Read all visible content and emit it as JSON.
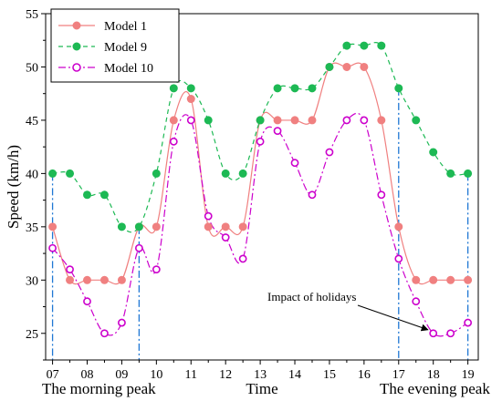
{
  "chart_data": {
    "type": "line",
    "xlabel": "Time",
    "ylabel": "Speed (km/h)",
    "xlim": [
      6.8,
      19.3
    ],
    "ylim": [
      22.5,
      55
    ],
    "x_ticks": [
      7,
      8,
      9,
      10,
      11,
      12,
      13,
      14,
      15,
      16,
      17,
      18,
      19
    ],
    "x_tick_labels": [
      "07",
      "08",
      "09",
      "10",
      "11",
      "12",
      "13",
      "14",
      "15",
      "16",
      "17",
      "18",
      "19"
    ],
    "y_ticks": [
      25,
      30,
      35,
      40,
      45,
      50,
      55
    ],
    "grid": false,
    "legend_position": "top-left",
    "x": [
      7,
      7.5,
      8,
      8.5,
      9,
      9.5,
      10,
      10.5,
      11,
      11.5,
      12,
      12.5,
      13,
      13.5,
      14,
      14.5,
      15,
      15.5,
      16,
      16.5,
      17,
      17.5,
      18,
      18.5,
      19
    ],
    "series": [
      {
        "name": "Model 1",
        "color": "#f08080",
        "marker": "filled-circle",
        "line": "solid",
        "values": [
          35,
          30,
          30,
          30,
          30,
          35,
          35,
          45,
          47,
          35,
          35,
          35,
          45,
          45,
          45,
          45,
          50,
          50,
          50,
          45,
          35,
          30,
          30,
          30,
          30
        ]
      },
      {
        "name": "Model 9",
        "color": "#1db954",
        "marker": "filled-circle",
        "line": "dashed",
        "values": [
          40,
          40,
          38,
          38,
          35,
          35,
          40,
          48,
          48,
          45,
          40,
          40,
          45,
          48,
          48,
          48,
          50,
          52,
          52,
          52,
          48,
          45,
          42,
          40,
          40
        ]
      },
      {
        "name": "Model 10",
        "color": "#cc00cc",
        "marker": "open-circle",
        "line": "dash-dot",
        "values": [
          33,
          31,
          28,
          25,
          26,
          33,
          31,
          43,
          45,
          36,
          34,
          32,
          43,
          44,
          41,
          38,
          42,
          45,
          45,
          38,
          32,
          28,
          25,
          25,
          26
        ]
      }
    ],
    "reference_lines": {
      "x_values": [
        7,
        9.5,
        17,
        19
      ],
      "color": "#1f77d4",
      "style": "dash-dot"
    },
    "annotations": {
      "morning_peak": "The morning peak",
      "evening_peak": "The evening peak",
      "holidays": "Impact of holidays",
      "holidays_arrow_target": {
        "x": 18,
        "y": 25
      }
    }
  }
}
